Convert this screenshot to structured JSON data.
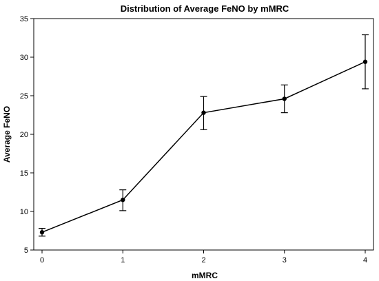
{
  "chart_data": {
    "type": "line",
    "title": "Distribution of Average FeNO by mMRC",
    "xlabel": "mMRC",
    "ylabel": "Average FeNO",
    "categories": [
      "0",
      "1",
      "2",
      "3",
      "4"
    ],
    "series": [
      {
        "values": [
          7.3,
          11.5,
          22.8,
          24.6,
          29.4
        ],
        "lower": [
          6.8,
          10.1,
          20.6,
          22.8,
          25.9
        ],
        "upper": [
          7.8,
          12.8,
          24.9,
          26.4,
          32.9
        ]
      }
    ],
    "xlim": [
      0,
      4
    ],
    "ylim": [
      5,
      35
    ],
    "yticks": [
      5,
      10,
      15,
      20,
      25,
      30,
      35
    ],
    "grid": false,
    "legend": "none",
    "colors": {
      "line": "#000000",
      "marker": "#000000",
      "axis": "#000000"
    }
  }
}
